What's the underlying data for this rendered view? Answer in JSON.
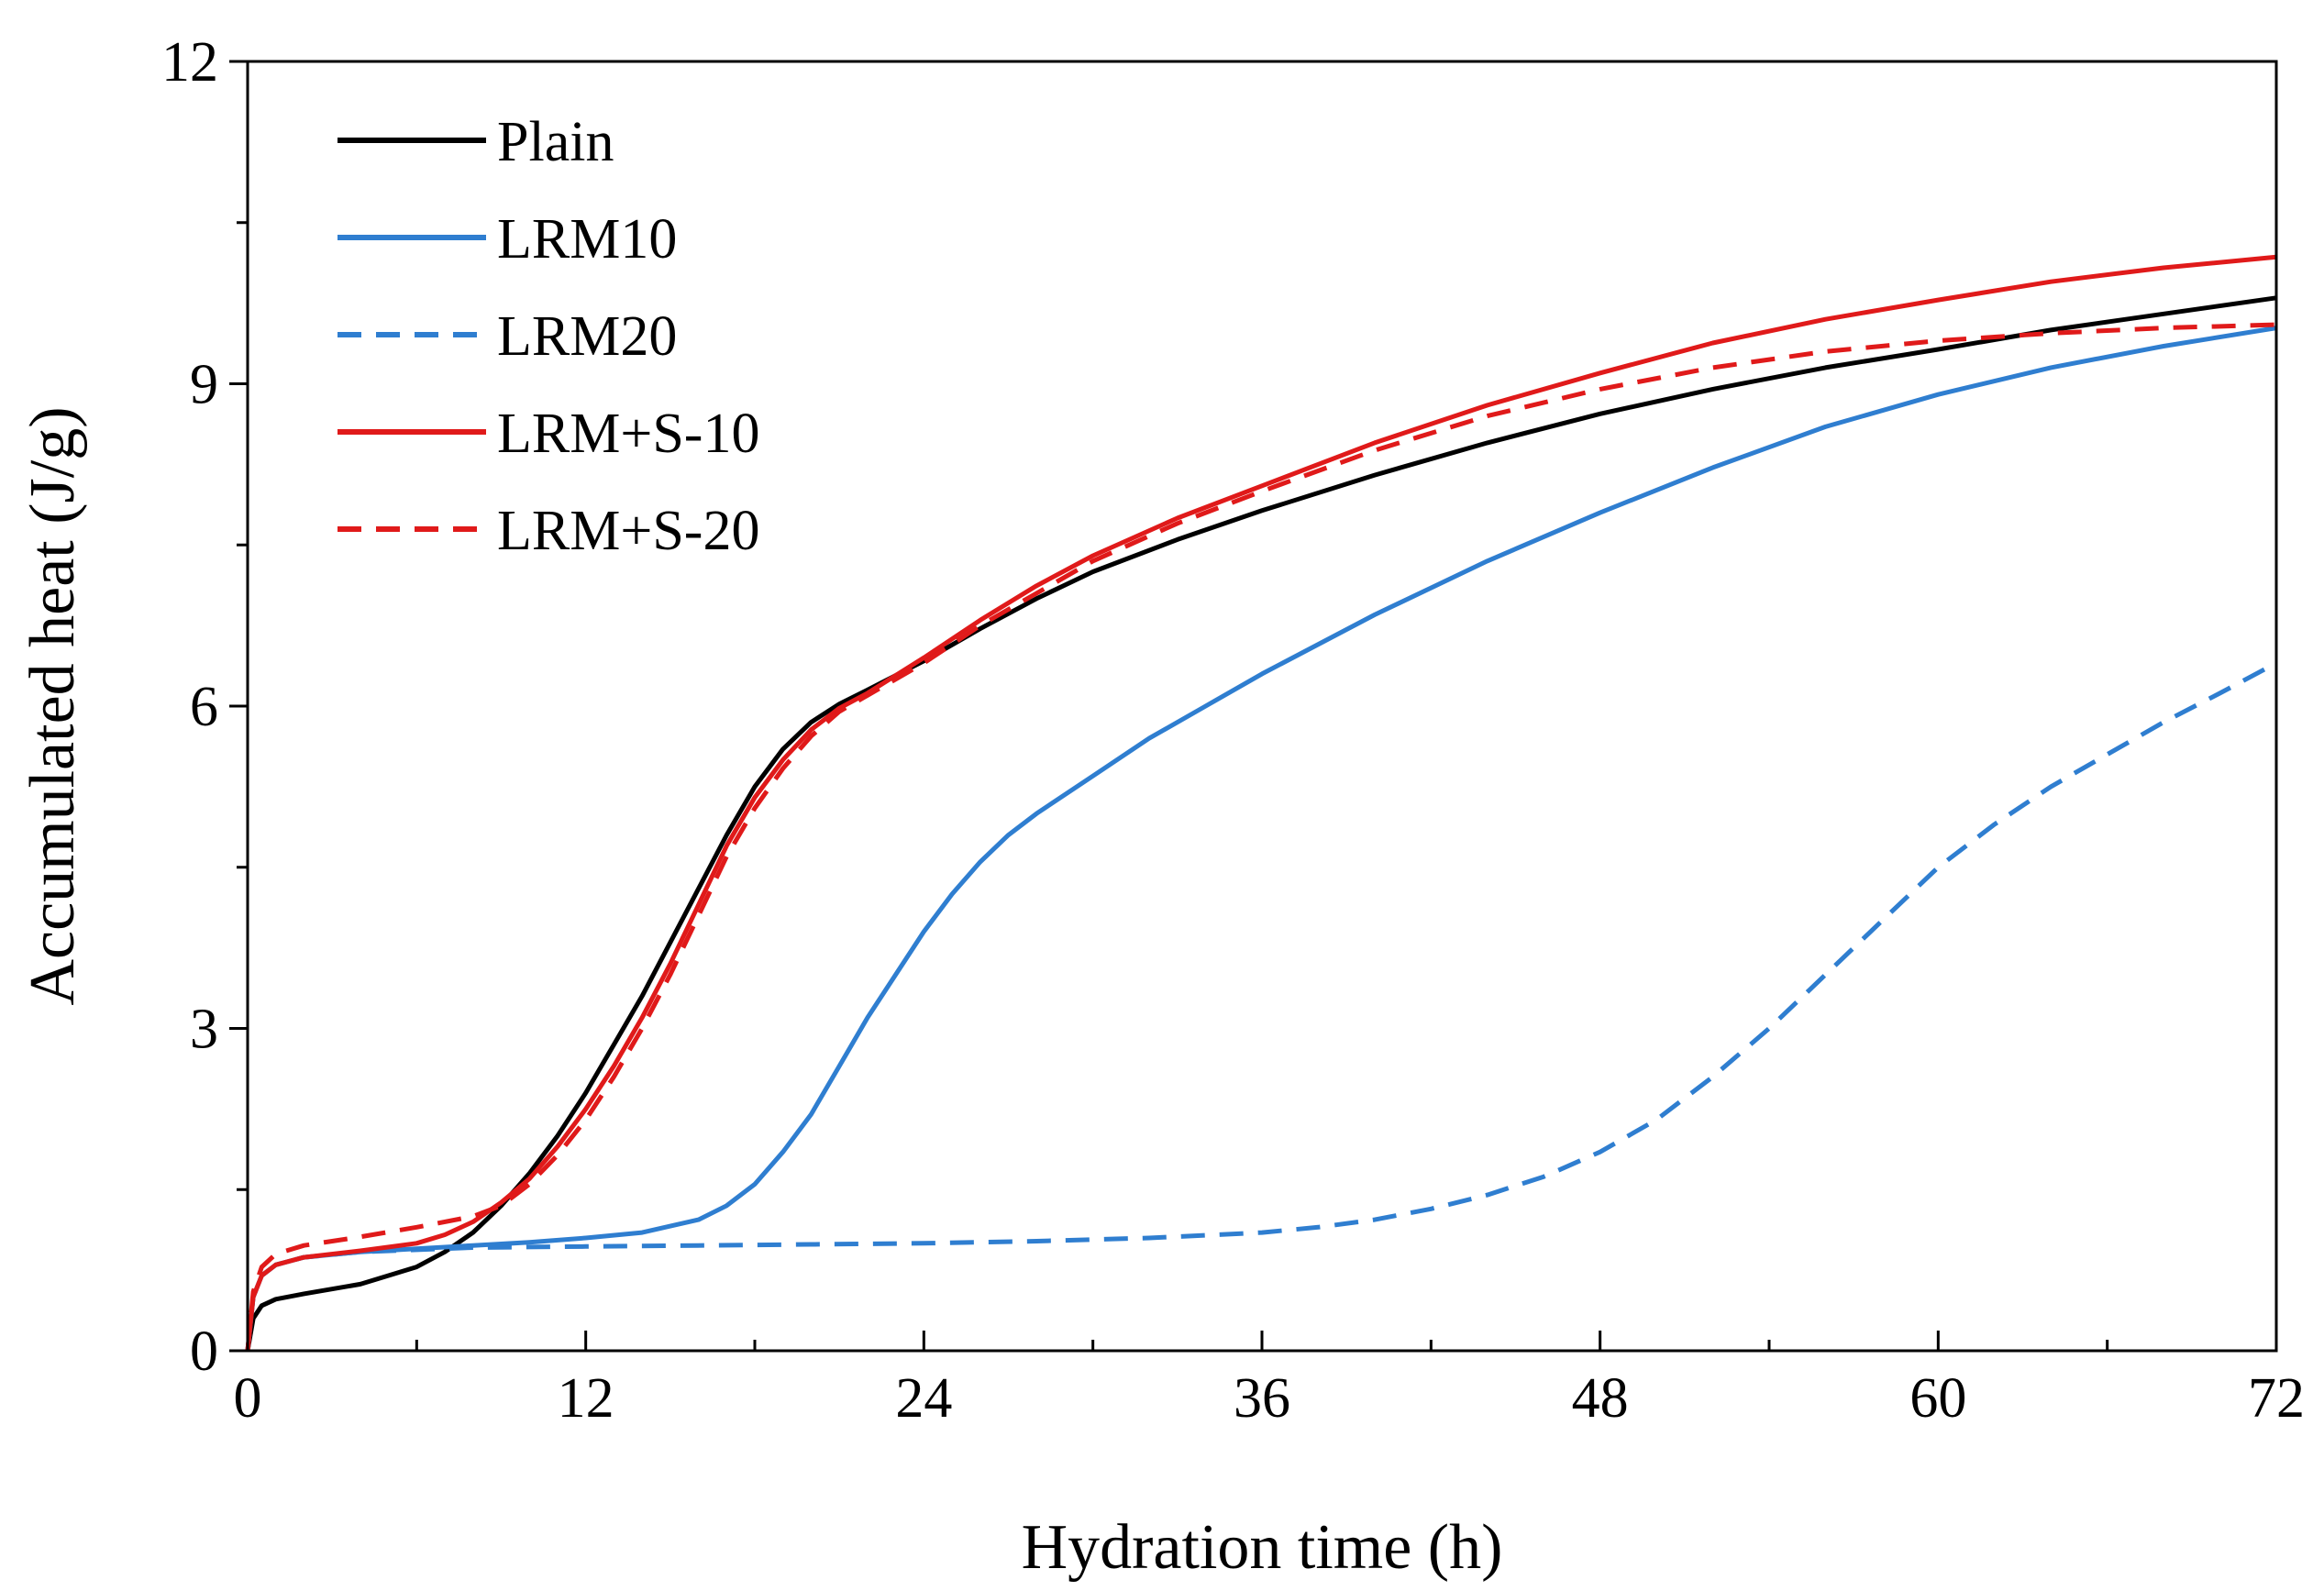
{
  "chart_data": {
    "type": "line",
    "title": "",
    "xlabel": "Hydration time (h)",
    "ylabel": "Accumulated heat (J/g)",
    "xlim": [
      0,
      72
    ],
    "ylim": [
      0,
      12
    ],
    "xticks": [
      0,
      12,
      24,
      36,
      48,
      60,
      72
    ],
    "yticks": [
      0,
      3,
      6,
      9,
      12
    ],
    "x_tick_labels": [
      "0",
      "12",
      "24",
      "36",
      "48",
      "60",
      "72"
    ],
    "y_tick_labels": [
      "0",
      "3",
      "6",
      "9",
      "12"
    ],
    "grid": false,
    "legend_position": "top-left",
    "series": [
      {
        "name": "Plain",
        "color": "#000000",
        "dash": "solid",
        "x": [
          0,
          0.2,
          0.5,
          1,
          2,
          4,
          6,
          7,
          8,
          9,
          10,
          11,
          12,
          13,
          14,
          15,
          16,
          17,
          18,
          19,
          20,
          21,
          22,
          24,
          26,
          28,
          30,
          33,
          36,
          40,
          44,
          48,
          52,
          56,
          60,
          64,
          68,
          72
        ],
        "y": [
          0,
          0.3,
          0.42,
          0.48,
          0.53,
          0.62,
          0.78,
          0.92,
          1.1,
          1.35,
          1.65,
          2.0,
          2.4,
          2.85,
          3.3,
          3.8,
          4.3,
          4.8,
          5.25,
          5.6,
          5.85,
          6.02,
          6.15,
          6.42,
          6.72,
          7.0,
          7.25,
          7.55,
          7.82,
          8.15,
          8.45,
          8.72,
          8.95,
          9.15,
          9.32,
          9.5,
          9.65,
          9.8
        ]
      },
      {
        "name": "LRM10",
        "color": "#2f7ed0",
        "dash": "solid",
        "x": [
          0,
          0.2,
          0.5,
          1,
          2,
          4,
          6,
          8,
          10,
          12,
          14,
          16,
          17,
          18,
          19,
          20,
          21,
          22,
          23,
          24,
          25,
          26,
          27,
          28,
          30,
          32,
          34,
          36,
          40,
          44,
          48,
          52,
          56,
          60,
          64,
          68,
          72
        ],
        "y": [
          0,
          0.5,
          0.7,
          0.8,
          0.87,
          0.92,
          0.95,
          0.98,
          1.01,
          1.05,
          1.1,
          1.22,
          1.35,
          1.55,
          1.85,
          2.2,
          2.65,
          3.1,
          3.5,
          3.9,
          4.25,
          4.55,
          4.8,
          5.0,
          5.35,
          5.7,
          6.0,
          6.3,
          6.85,
          7.35,
          7.8,
          8.22,
          8.6,
          8.9,
          9.15,
          9.35,
          9.52
        ]
      },
      {
        "name": "LRM20",
        "color": "#2f7ed0",
        "dash": "dashed",
        "x": [
          0,
          0.2,
          0.5,
          1,
          2,
          4,
          8,
          12,
          16,
          20,
          24,
          28,
          32,
          36,
          38,
          40,
          42,
          44,
          46,
          48,
          50,
          52,
          54,
          56,
          58,
          60,
          62,
          64,
          66,
          68,
          70,
          72
        ],
        "y": [
          0,
          0.5,
          0.7,
          0.8,
          0.87,
          0.92,
          0.96,
          0.97,
          0.98,
          0.99,
          1.0,
          1.02,
          1.05,
          1.1,
          1.15,
          1.22,
          1.32,
          1.45,
          1.62,
          1.85,
          2.15,
          2.55,
          3.0,
          3.5,
          4.0,
          4.5,
          4.9,
          5.25,
          5.55,
          5.85,
          6.12,
          6.4
        ]
      },
      {
        "name": "LRM+S-10",
        "color": "#e01a1a",
        "dash": "solid",
        "x": [
          0,
          0.2,
          0.5,
          1,
          2,
          4,
          6,
          7,
          8,
          9,
          10,
          11,
          12,
          13,
          14,
          15,
          16,
          17,
          18,
          19,
          20,
          21,
          22,
          24,
          26,
          28,
          30,
          33,
          36,
          40,
          44,
          48,
          52,
          56,
          60,
          64,
          68,
          72
        ],
        "y": [
          0,
          0.5,
          0.7,
          0.8,
          0.87,
          0.93,
          1.0,
          1.08,
          1.2,
          1.38,
          1.6,
          1.9,
          2.25,
          2.65,
          3.1,
          3.6,
          4.15,
          4.7,
          5.15,
          5.5,
          5.78,
          5.98,
          6.12,
          6.45,
          6.8,
          7.12,
          7.4,
          7.75,
          8.05,
          8.45,
          8.8,
          9.1,
          9.38,
          9.6,
          9.78,
          9.95,
          10.08,
          10.18
        ]
      },
      {
        "name": "LRM+S-20",
        "color": "#e01a1a",
        "dash": "dashed",
        "x": [
          0,
          0.2,
          0.5,
          1,
          2,
          4,
          6,
          8,
          9,
          10,
          11,
          12,
          13,
          14,
          15,
          16,
          17,
          18,
          19,
          20,
          21,
          22,
          24,
          26,
          28,
          30,
          33,
          36,
          40,
          44,
          48,
          52,
          56,
          60,
          64,
          68,
          72
        ],
        "y": [
          0,
          0.55,
          0.78,
          0.9,
          0.98,
          1.06,
          1.15,
          1.25,
          1.35,
          1.55,
          1.82,
          2.15,
          2.55,
          3.0,
          3.5,
          4.05,
          4.6,
          5.05,
          5.42,
          5.72,
          5.95,
          6.1,
          6.4,
          6.75,
          7.05,
          7.35,
          7.7,
          8.0,
          8.38,
          8.7,
          8.95,
          9.15,
          9.3,
          9.4,
          9.47,
          9.52,
          9.55
        ]
      }
    ]
  }
}
